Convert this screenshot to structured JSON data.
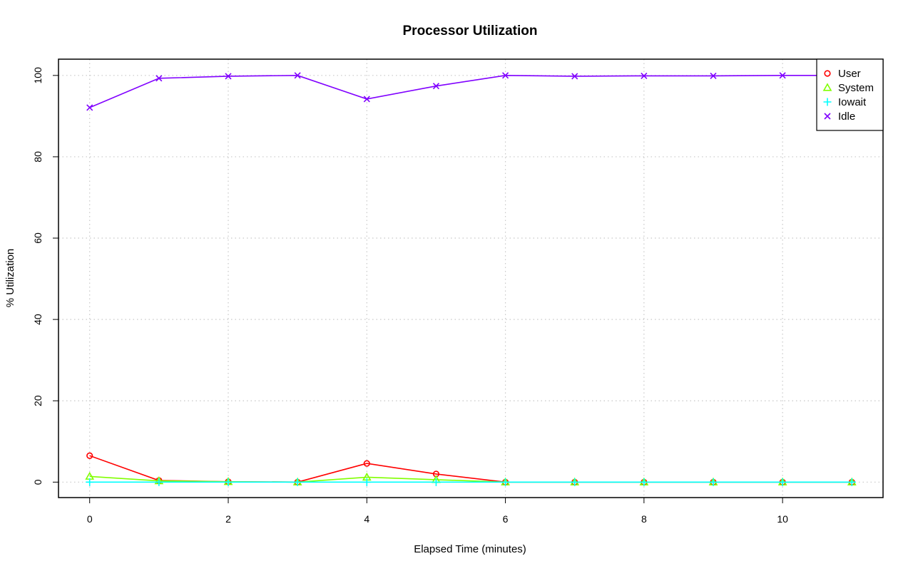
{
  "chart_data": {
    "type": "line",
    "title": "Processor Utilization",
    "xlabel": "Elapsed Time (minutes)",
    "ylabel": "% Utilization",
    "xlim": [
      -0.45,
      11.45
    ],
    "ylim": [
      -3.8,
      104
    ],
    "x_ticks": [
      0,
      2,
      4,
      6,
      8,
      10
    ],
    "y_ticks": [
      0,
      20,
      40,
      60,
      80,
      100
    ],
    "grid": true,
    "legend_position": "top-right",
    "x": [
      0,
      1,
      2,
      3,
      4,
      5,
      6,
      7,
      8,
      9,
      10,
      11
    ],
    "series": [
      {
        "name": "User",
        "color": "#ff0000",
        "marker": "circle",
        "values": [
          6.5,
          0.4,
          0.1,
          0.0,
          4.6,
          2.0,
          0.0,
          0.0,
          0.0,
          0.0,
          0.0,
          0.0
        ]
      },
      {
        "name": "System",
        "color": "#80ff00",
        "marker": "triangle",
        "values": [
          1.4,
          0.3,
          0.1,
          0.0,
          1.2,
          0.6,
          0.0,
          0.0,
          0.0,
          0.0,
          0.0,
          0.0
        ]
      },
      {
        "name": "Iowait",
        "color": "#00ffff",
        "marker": "plus",
        "values": [
          0.0,
          0.0,
          0.0,
          0.0,
          0.0,
          0.0,
          0.0,
          0.0,
          0.0,
          0.0,
          0.0,
          0.0
        ]
      },
      {
        "name": "Idle",
        "color": "#8000ff",
        "marker": "cross",
        "values": [
          92.1,
          99.3,
          99.8,
          100.0,
          94.2,
          97.4,
          100.0,
          99.8,
          99.9,
          99.9,
          100.0,
          100.0
        ]
      }
    ]
  }
}
